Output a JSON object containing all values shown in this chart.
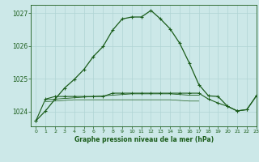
{
  "title": "Graphe pression niveau de la mer (hPa)",
  "bg_color": "#cce8e8",
  "grid_color": "#b0d4d4",
  "line_color": "#1a5c1a",
  "xlim": [
    -0.5,
    23
  ],
  "ylim": [
    1023.55,
    1027.25
  ],
  "yticks": [
    1024,
    1025,
    1026,
    1027
  ],
  "xticks": [
    0,
    1,
    2,
    3,
    4,
    5,
    6,
    7,
    8,
    9,
    10,
    11,
    12,
    13,
    14,
    15,
    16,
    17,
    18,
    19,
    20,
    21,
    22,
    23
  ],
  "series1_x": [
    0,
    1,
    2,
    3,
    4,
    5,
    6,
    7,
    8,
    9,
    10,
    11,
    12,
    13,
    14,
    15,
    16,
    17,
    18,
    19,
    20,
    21,
    22,
    23
  ],
  "series1_y": [
    1023.72,
    1024.02,
    1024.38,
    1024.72,
    1024.98,
    1025.28,
    1025.68,
    1025.98,
    1026.48,
    1026.82,
    1026.88,
    1026.88,
    1027.08,
    1026.82,
    1026.52,
    1026.08,
    1025.48,
    1024.82,
    1024.48,
    1024.46,
    1024.16,
    1024.02,
    1024.06,
    1024.48
  ],
  "series2_x": [
    0,
    1,
    2,
    3,
    4,
    5,
    6,
    7,
    8,
    9,
    10,
    11,
    12,
    13,
    14,
    15,
    16,
    17,
    18,
    19,
    20,
    21,
    22,
    23
  ],
  "series2_y": [
    1023.72,
    1024.38,
    1024.46,
    1024.46,
    1024.46,
    1024.46,
    1024.46,
    1024.46,
    1024.56,
    1024.56,
    1024.56,
    1024.56,
    1024.56,
    1024.56,
    1024.56,
    1024.56,
    1024.56,
    1024.56,
    1024.38,
    1024.26,
    1024.16,
    1024.02,
    1024.06,
    1024.48
  ],
  "series3_x": [
    1,
    2,
    3,
    4,
    5,
    6,
    7,
    8,
    9,
    10,
    11,
    12,
    13,
    14,
    15,
    16,
    17
  ],
  "series3_y": [
    1024.36,
    1024.38,
    1024.4,
    1024.42,
    1024.44,
    1024.46,
    1024.48,
    1024.5,
    1024.52,
    1024.54,
    1024.54,
    1024.54,
    1024.54,
    1024.54,
    1024.52,
    1024.5,
    1024.5
  ],
  "series4_x": [
    1,
    2,
    3,
    4,
    5,
    6,
    7,
    8,
    9,
    10,
    11,
    12,
    13,
    14,
    15,
    16,
    17
  ],
  "series4_y": [
    1024.3,
    1024.32,
    1024.34,
    1024.36,
    1024.36,
    1024.36,
    1024.36,
    1024.36,
    1024.36,
    1024.36,
    1024.36,
    1024.36,
    1024.36,
    1024.36,
    1024.34,
    1024.32,
    1024.32
  ]
}
